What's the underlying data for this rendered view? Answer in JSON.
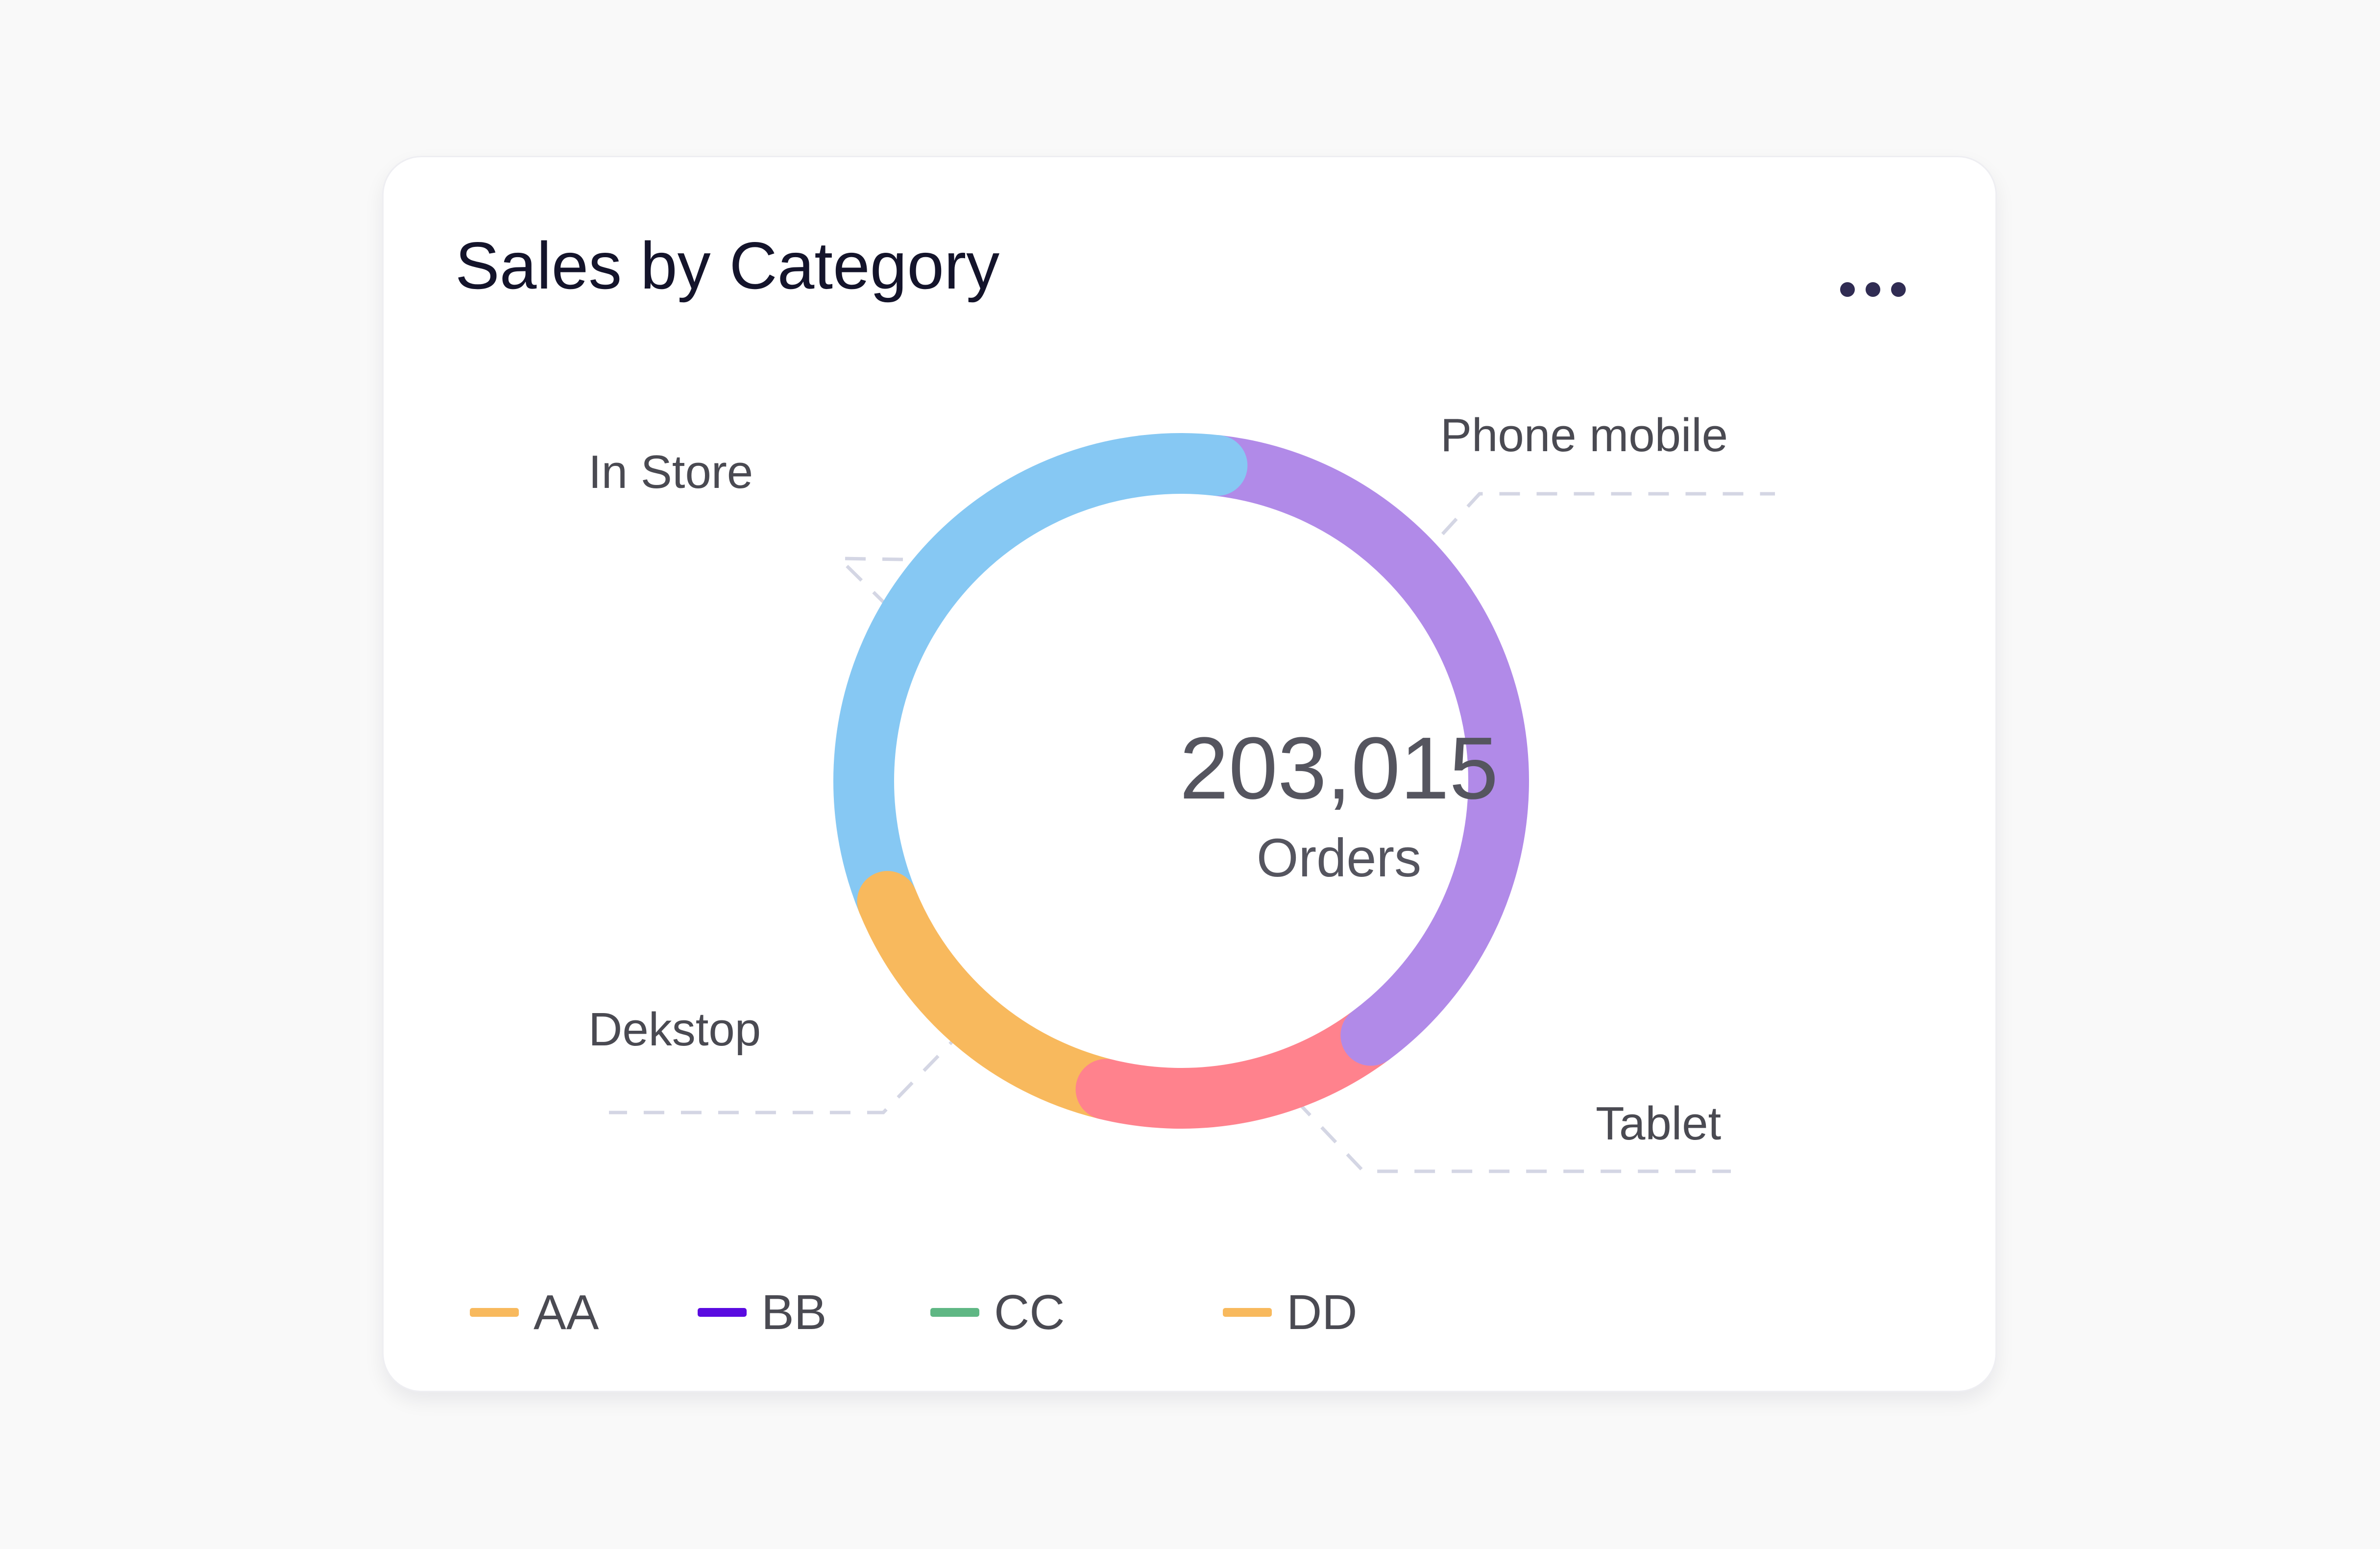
{
  "card": {
    "title": "Sales by Category",
    "menu_icon": "more-horizontal-icon"
  },
  "chart_data": {
    "type": "donut",
    "title": "Sales by Category",
    "total": {
      "value": "203,015",
      "label": "Orders"
    },
    "slices": [
      {
        "name": "Phone mobile",
        "percent": 38,
        "color": "#b18ae8"
      },
      {
        "name": "Tablet",
        "percent": 14,
        "color": "#ff828d"
      },
      {
        "name": "Dekstop",
        "percent": 15,
        "color": "#f8b95d"
      },
      {
        "name": "In Store",
        "percent": 33,
        "color": "#86c8f3"
      }
    ],
    "legend": [
      {
        "label": "AA",
        "color": "#f8b95d"
      },
      {
        "label": "BB",
        "color": "#5a0be0"
      },
      {
        "label": "CC",
        "color": "#5fb784"
      },
      {
        "label": "DD",
        "color": "#f8b95d"
      }
    ]
  }
}
